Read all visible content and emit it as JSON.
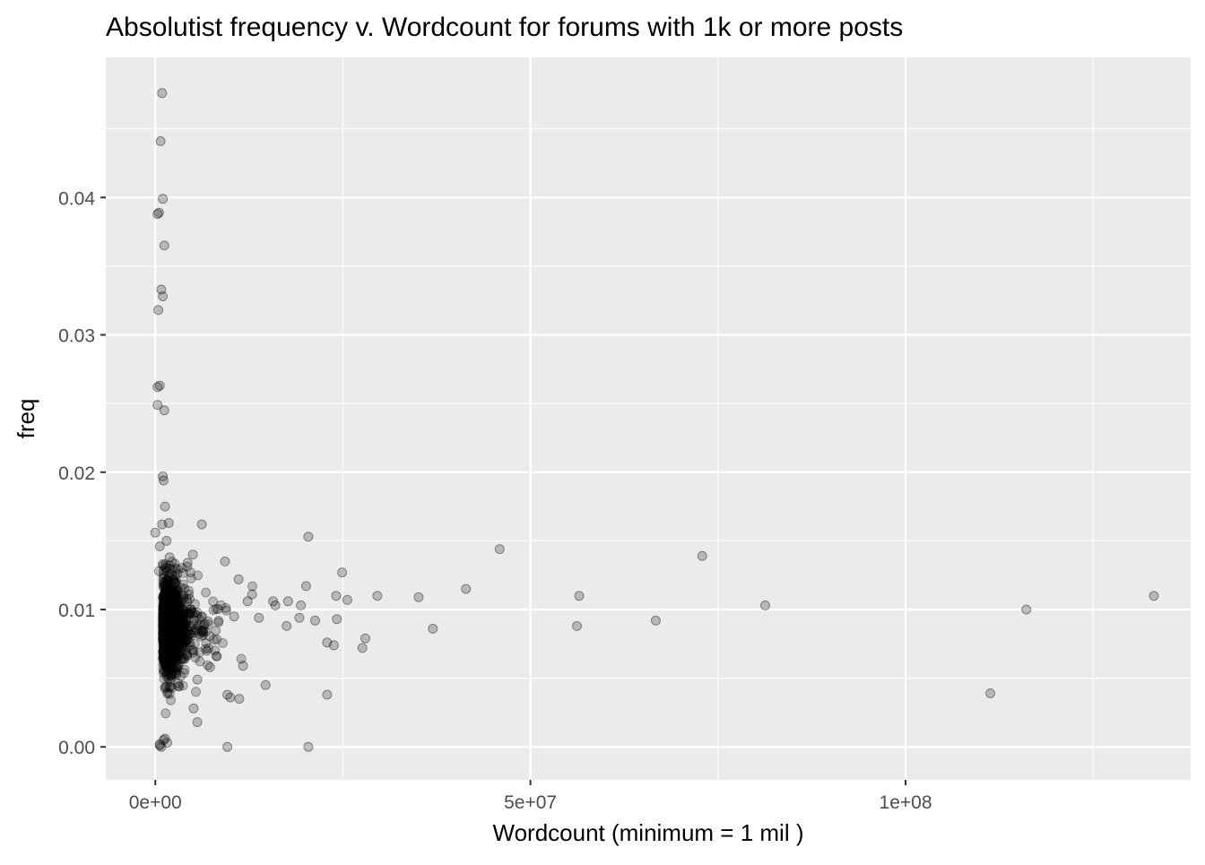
{
  "chart_data": {
    "type": "scatter",
    "title": "Absolutist frequency v. Wordcount for forums with 1k or more posts",
    "xlabel": "Wordcount (minimum = 1 mil )",
    "ylabel": "freq",
    "xlim": [
      -6600000,
      138000000
    ],
    "ylim": [
      -0.0024,
      0.0502
    ],
    "x_ticks": [
      0,
      50000000,
      100000000
    ],
    "x_tick_labels": [
      "0e+00",
      "5e+07",
      "1e+08"
    ],
    "y_ticks": [
      0,
      0.01,
      0.02,
      0.03,
      0.04
    ],
    "y_tick_labels": [
      "0.00",
      "0.01",
      "0.02",
      "0.03",
      "0.04"
    ],
    "grid": true,
    "panel_background": "#ebebeb",
    "grid_color": "#ffffff",
    "point_color": "#000000",
    "point_alpha": 0.22,
    "series": [
      {
        "x": [
          900000,
          700000,
          1000000,
          500000,
          300000,
          1200000,
          800000,
          1000000,
          400000,
          600000,
          300000,
          1200000,
          300000,
          1000000,
          1100000,
          1300000,
          1800000,
          0,
          900000,
          1500000,
          600000,
          1900000,
          1000000,
          500000,
          1300000,
          1100000,
          800000,
          600000,
          1600000,
          600000,
          5000000,
          4300000,
          6200000,
          9300000,
          9600000,
          11100000,
          12300000,
          15700000,
          17700000,
          20100000,
          20400000,
          19400000,
          24100000,
          24900000,
          25600000,
          24200000,
          28000000,
          29600000,
          35100000,
          37000000,
          41400000,
          45900000,
          56500000,
          56200000,
          66700000,
          72900000,
          81300000,
          111300000,
          116100000,
          133100000,
          10500000,
          12900000,
          13800000,
          16000000,
          17500000,
          19200000,
          21300000,
          22900000,
          23800000,
          27600000,
          14700000,
          10000000,
          11200000,
          5100000,
          5600000,
          7300000,
          8200000,
          3900000,
          9600000,
          20400000,
          22900000,
          11700000,
          5600000
        ],
        "y": [
          0.0476,
          0.0441,
          0.0399,
          0.0389,
          0.0388,
          0.0365,
          0.0333,
          0.0328,
          0.0318,
          0.0263,
          0.0262,
          0.0245,
          0.0249,
          0.0197,
          0.0194,
          0.0175,
          0.0163,
          0.0156,
          0.0162,
          0.015,
          0.0146,
          0.0138,
          0.0133,
          0.0128,
          0.0006,
          0.0005,
          0.0,
          0.0002,
          0.0003,
          0.0001,
          0.014,
          0.0134,
          0.0162,
          0.0135,
          0.0,
          0.0122,
          0.0106,
          0.0106,
          0.0106,
          0.0117,
          0.0153,
          0.0103,
          0.011,
          0.0127,
          0.0107,
          0.0093,
          0.0079,
          0.011,
          0.0109,
          0.0086,
          0.0115,
          0.0144,
          0.011,
          0.0088,
          0.0092,
          0.0139,
          0.0103,
          0.0039,
          0.01,
          0.011,
          0.0095,
          0.0111,
          0.0094,
          0.0103,
          0.0088,
          0.0094,
          0.0092,
          0.0076,
          0.0074,
          0.0072,
          0.0045,
          0.0036,
          0.0035,
          0.0028,
          0.0018,
          0.0058,
          0.0066,
          0.0064,
          0.0038,
          0.0,
          0.0038,
          0.0059,
          0.0049
        ]
      }
    ]
  }
}
